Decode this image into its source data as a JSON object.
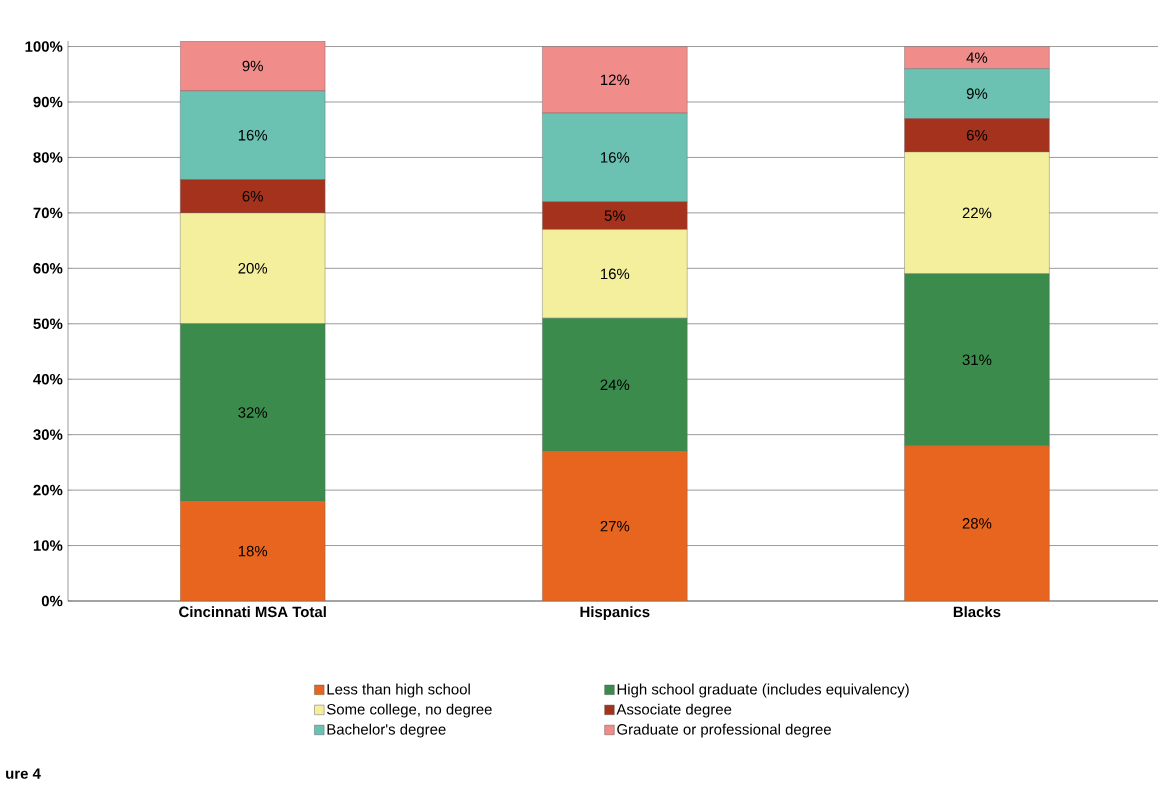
{
  "chart_data": {
    "type": "bar",
    "stacked": true,
    "grid": "y",
    "legend": "bottom",
    "categories": [
      "Cincinnati MSA Total",
      "Hispanics",
      "Blacks"
    ],
    "ylim": [
      0,
      101
    ],
    "yticks": [
      {
        "value": 0,
        "label": "0%"
      },
      {
        "value": 10,
        "label": "10%"
      },
      {
        "value": 20,
        "label": "20%"
      },
      {
        "value": 30,
        "label": "30%"
      },
      {
        "value": 40,
        "label": "40%"
      },
      {
        "value": 50,
        "label": "50%"
      },
      {
        "value": 60,
        "label": "60%"
      },
      {
        "value": 70,
        "label": "70%"
      },
      {
        "value": 80,
        "label": "80%"
      },
      {
        "value": 90,
        "label": "90%"
      },
      {
        "value": 100,
        "label": "100%"
      }
    ],
    "series": [
      {
        "name": "Less than high school",
        "color": "#e8651f",
        "values": [
          18,
          27,
          28
        ],
        "value_labels": [
          "18%",
          "27%",
          "28%"
        ]
      },
      {
        "name": "High school graduate (includes equivalency)",
        "color": "#3b8c4c",
        "values": [
          32,
          24,
          31
        ],
        "value_labels": [
          "32%",
          "24%",
          "31%"
        ]
      },
      {
        "name": "Some college, no degree",
        "color": "#f4ef9c",
        "values": [
          20,
          16,
          22
        ],
        "value_labels": [
          "20%",
          "16%",
          "22%"
        ]
      },
      {
        "name": "Associate degree",
        "color": "#a5321d",
        "values": [
          6,
          5,
          6
        ],
        "value_labels": [
          "6%",
          "5%",
          "6%"
        ]
      },
      {
        "name": "Bachelor's degree",
        "color": "#6cc2b2",
        "values": [
          16,
          16,
          9
        ],
        "value_labels": [
          "16%",
          "16%",
          "9%"
        ]
      },
      {
        "name": "Graduate or professional degree",
        "color": "#f08c8a",
        "values": [
          9,
          12,
          4
        ],
        "value_labels": [
          "9%",
          "12%",
          "4%"
        ]
      }
    ],
    "annotations": [
      "ure 4"
    ]
  }
}
